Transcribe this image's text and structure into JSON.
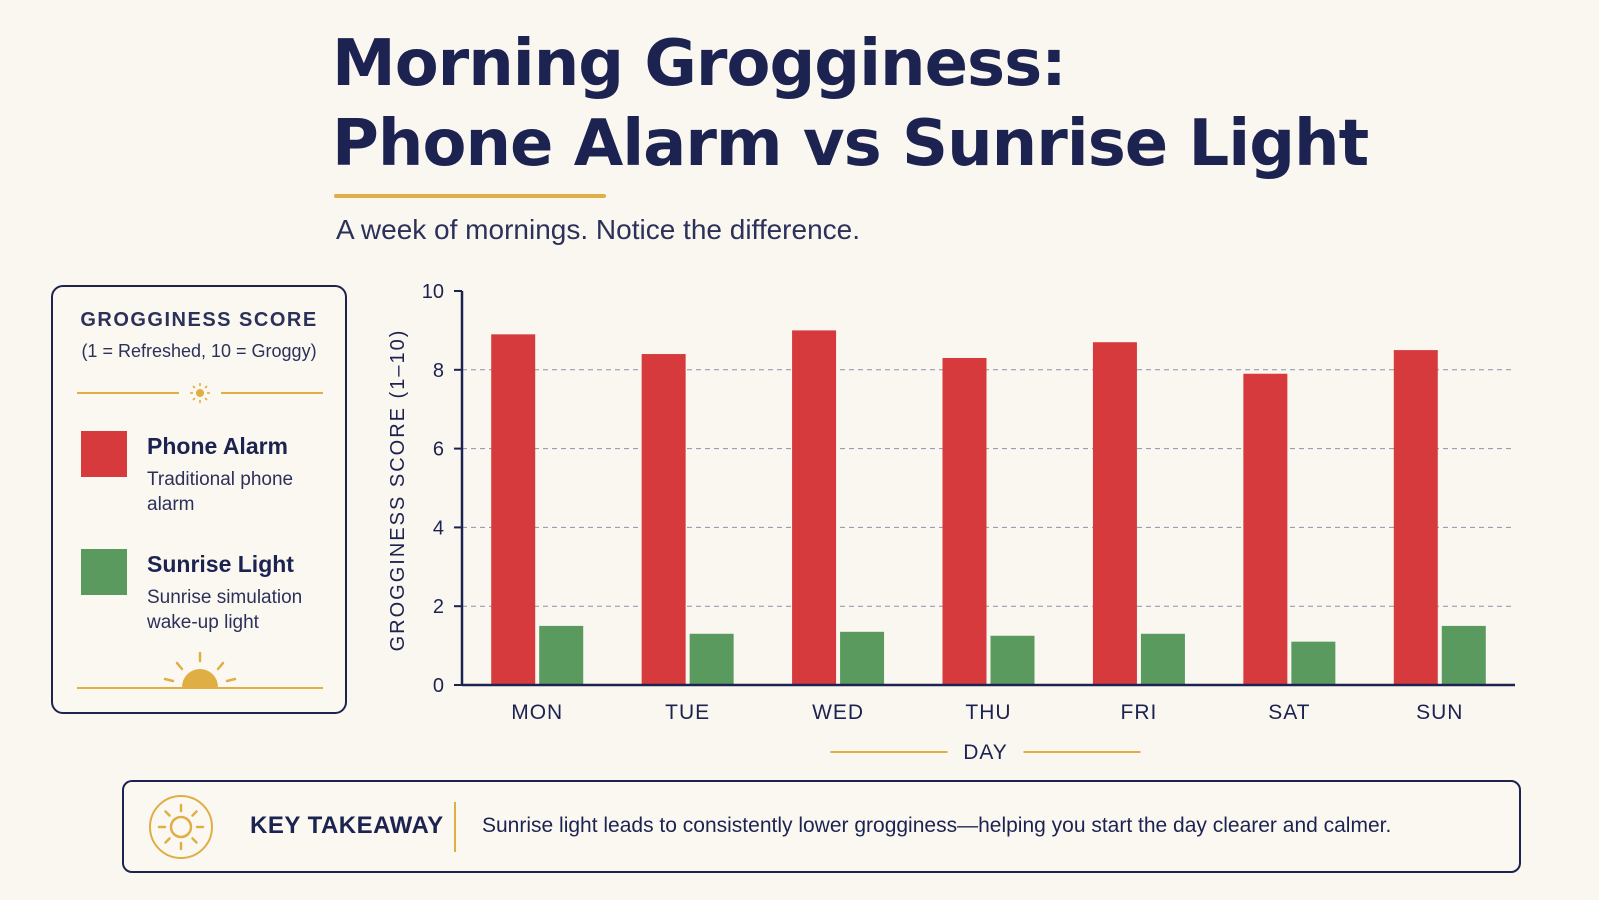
{
  "title_line1": "Morning Grogginess:",
  "title_line2": "Phone Alarm vs Sunrise Light",
  "subtitle": "A week of mornings. Notice the difference.",
  "legend": {
    "title": "GROGGINESS SCORE",
    "subtitle": "(1 = Refreshed, 10 = Groggy)",
    "items": [
      {
        "name": "Phone Alarm",
        "description": "Traditional phone alarm",
        "color": "#d63a3c"
      },
      {
        "name": "Sunrise Light",
        "description": "Sunrise simulation wake-up light",
        "color": "#5a9a5e"
      }
    ]
  },
  "takeaway": {
    "label": "KEY TAKEAWAY",
    "text": "Sunrise light leads to consistently lower grogginess—helping you start the day clearer and calmer."
  },
  "chart_data": {
    "type": "bar",
    "categories": [
      "MON",
      "TUE",
      "WED",
      "THU",
      "FRI",
      "SAT",
      "SUN"
    ],
    "series": [
      {
        "name": "Phone Alarm",
        "values": [
          8.9,
          8.4,
          9.0,
          8.3,
          8.7,
          7.9,
          8.5
        ],
        "color": "#d63a3c"
      },
      {
        "name": "Sunrise Light",
        "values": [
          1.5,
          1.3,
          1.35,
          1.25,
          1.3,
          1.1,
          1.5
        ],
        "color": "#5a9a5e"
      }
    ],
    "xlabel": "DAY",
    "ylabel": "GROGGINESS SCORE (1–10)",
    "ylim": [
      0,
      10
    ],
    "yticks": [
      0,
      2,
      4,
      6,
      8,
      10
    ],
    "grid": true,
    "legend_position": "left"
  }
}
